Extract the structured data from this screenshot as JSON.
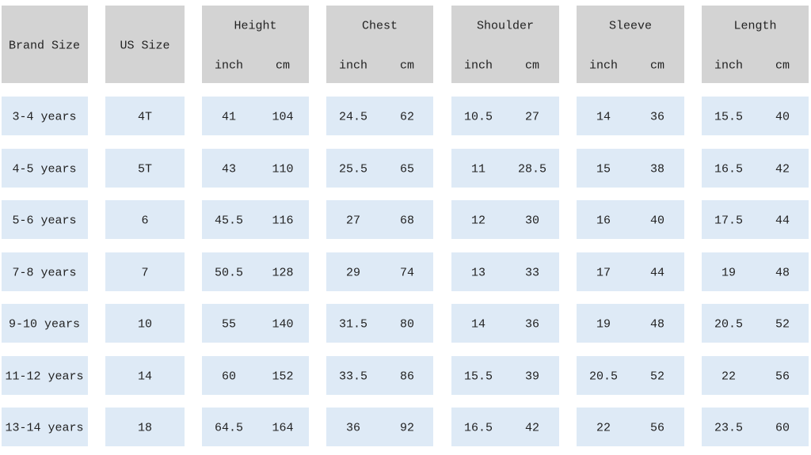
{
  "header": {
    "brand_size": "Brand Size",
    "us_size": "US Size",
    "groups": [
      {
        "title": "Height",
        "units": [
          "inch",
          "cm"
        ]
      },
      {
        "title": "Chest",
        "units": [
          "inch",
          "cm"
        ]
      },
      {
        "title": "Shoulder",
        "units": [
          "inch",
          "cm"
        ]
      },
      {
        "title": "Sleeve",
        "units": [
          "inch",
          "cm"
        ]
      },
      {
        "title": "Length",
        "units": [
          "inch",
          "cm"
        ]
      }
    ]
  },
  "table": {
    "rows": [
      [
        "3-4 years",
        "4T",
        "41",
        "104",
        "24.5",
        "62",
        "10.5",
        "27",
        "14",
        "36",
        "15.5",
        "40"
      ],
      [
        "4-5 years",
        "5T",
        "43",
        "110",
        "25.5",
        "65",
        "11",
        "28.5",
        "15",
        "38",
        "16.5",
        "42"
      ],
      [
        "5-6 years",
        "6",
        "45.5",
        "116",
        "27",
        "68",
        "12",
        "30",
        "16",
        "40",
        "17.5",
        "44"
      ],
      [
        "7-8 years",
        "7",
        "50.5",
        "128",
        "29",
        "74",
        "13",
        "33",
        "17",
        "44",
        "19",
        "48"
      ],
      [
        "9-10 years",
        "10",
        "55",
        "140",
        "31.5",
        "80",
        "14",
        "36",
        "19",
        "48",
        "20.5",
        "52"
      ],
      [
        "11-12 years",
        "14",
        "60",
        "152",
        "33.5",
        "86",
        "15.5",
        "39",
        "20.5",
        "52",
        "22",
        "56"
      ],
      [
        "13-14 years",
        "18",
        "64.5",
        "164",
        "36",
        "92",
        "16.5",
        "42",
        "22",
        "56",
        "23.5",
        "60"
      ]
    ]
  }
}
